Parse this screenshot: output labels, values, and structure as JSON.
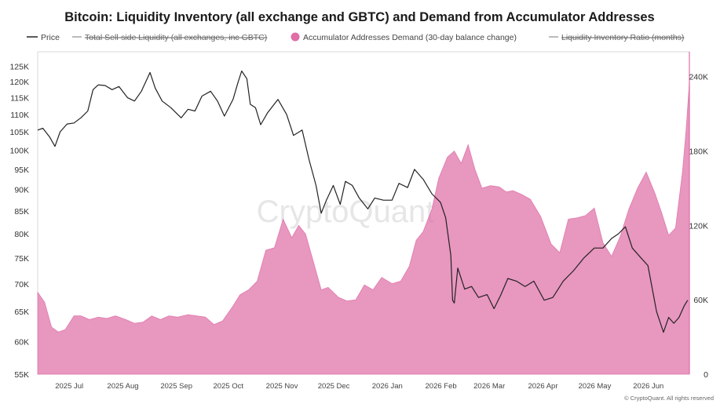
{
  "chart_data": {
    "type": "area",
    "title": "Bitcoin: Liquidity Inventory (all exchange and GBTC) and Demand from Accumulator Addresses",
    "legend": [
      {
        "label": "Price",
        "color": "#222222",
        "style": "line"
      },
      {
        "label": "Total Sell-side Liquidity (all exchanges, inc GBTC)",
        "color": "#666666",
        "style": "line-hidden"
      },
      {
        "label": "Accumulator Addresses Demand (30-day balance change)",
        "color": "#df6fa6",
        "style": "area"
      },
      {
        "label": "Liquidity Inventory Ratio (months)",
        "color": "#666666",
        "style": "line-hidden"
      }
    ],
    "legend_position": "top",
    "x_tick_labels": [
      "2025 Jul",
      "2025 Aug",
      "2025 Sep",
      "2025 Oct",
      "2025 Nov",
      "2025 Dec",
      "2026 Jan",
      "2026 Feb",
      "2026 Mar",
      "2026 Apr",
      "2026 May",
      "2026 Jun"
    ],
    "x_range": [
      "2025-06-10",
      "2026-06-22"
    ],
    "y_left": {
      "scale": "log",
      "range": [
        55000,
        130000
      ],
      "tick_values": [
        55000,
        60000,
        65000,
        70000,
        75000,
        80000,
        85000,
        90000,
        95000,
        100000,
        105000,
        110000,
        115000,
        120000,
        125000
      ],
      "tick_labels": [
        "55K",
        "60K",
        "65K",
        "70K",
        "75K",
        "80K",
        "85K",
        "90K",
        "95K",
        "100K",
        "105K",
        "110K",
        "115K",
        "120K",
        "125K"
      ]
    },
    "y_right": {
      "scale": "linear",
      "range": [
        0,
        260000
      ],
      "tick_values": [
        0,
        60000,
        120000,
        180000,
        240000
      ],
      "tick_labels": [
        "0",
        "60K",
        "120K",
        "180K",
        "240K"
      ]
    },
    "grid": false,
    "series": [
      {
        "name": "Price",
        "axis": "left",
        "type": "line",
        "color": "#222222",
        "x": [
          "2025-06-10",
          "2025-06-13",
          "2025-06-17",
          "2025-06-20",
          "2025-06-23",
          "2025-06-27",
          "2025-07-01",
          "2025-07-05",
          "2025-07-09",
          "2025-07-12",
          "2025-07-15",
          "2025-07-19",
          "2025-07-23",
          "2025-07-27",
          "2025-08-01",
          "2025-08-05",
          "2025-08-09",
          "2025-08-14",
          "2025-08-17",
          "2025-08-21",
          "2025-08-26",
          "2025-09-01",
          "2025-09-05",
          "2025-09-09",
          "2025-09-13",
          "2025-09-18",
          "2025-09-22",
          "2025-09-26",
          "2025-10-01",
          "2025-10-04",
          "2025-10-06",
          "2025-10-09",
          "2025-10-11",
          "2025-10-14",
          "2025-10-17",
          "2025-10-21",
          "2025-10-27",
          "2025-11-01",
          "2025-11-05",
          "2025-11-10",
          "2025-11-14",
          "2025-11-18",
          "2025-11-21",
          "2025-11-24",
          "2025-11-28",
          "2025-12-02",
          "2025-12-05",
          "2025-12-09",
          "2025-12-13",
          "2025-12-18",
          "2025-12-22",
          "2025-12-27",
          "2026-01-01",
          "2026-01-05",
          "2026-01-10",
          "2026-01-14",
          "2026-01-19",
          "2026-01-24",
          "2026-01-29",
          "2026-02-01",
          "2026-02-04",
          "2026-02-05",
          "2026-02-06",
          "2026-02-08",
          "2026-02-12",
          "2026-02-16",
          "2026-02-20",
          "2026-02-25",
          "2026-03-01",
          "2026-03-05",
          "2026-03-09",
          "2026-03-14",
          "2026-03-19",
          "2026-03-24",
          "2026-03-30",
          "2026-04-04",
          "2026-04-10",
          "2026-04-16",
          "2026-04-22",
          "2026-04-28",
          "2026-05-03",
          "2026-05-08",
          "2026-05-12",
          "2026-05-16",
          "2026-05-20",
          "2026-05-25",
          "2026-05-29",
          "2026-06-03",
          "2026-06-07",
          "2026-06-10",
          "2026-06-13",
          "2026-06-16",
          "2026-06-19",
          "2026-06-21"
        ],
        "values": [
          105500,
          106000,
          103500,
          101000,
          105000,
          107200,
          107500,
          109000,
          111000,
          117500,
          119000,
          118800,
          117500,
          118500,
          115000,
          114000,
          117000,
          123000,
          118000,
          114000,
          112000,
          109000,
          111500,
          111000,
          115500,
          117000,
          114000,
          109500,
          114500,
          120000,
          123500,
          121000,
          113000,
          112000,
          107000,
          110500,
          114500,
          110000,
          104000,
          105500,
          97500,
          91000,
          84500,
          87500,
          91000,
          86500,
          92000,
          91000,
          88000,
          85500,
          88000,
          87500,
          87500,
          91500,
          90500,
          95000,
          92500,
          89000,
          87000,
          83500,
          75500,
          67000,
          66500,
          73000,
          69000,
          69500,
          67500,
          68000,
          65500,
          68000,
          71000,
          70500,
          69500,
          70500,
          67000,
          67500,
          70500,
          72500,
          75000,
          77000,
          77000,
          79000,
          80000,
          81500,
          77000,
          75000,
          73500,
          65000,
          61500,
          64000,
          63000,
          64000,
          66000,
          67000
        ]
      },
      {
        "name": "Accumulator Addresses Demand (30-day balance change)",
        "axis": "right",
        "type": "area",
        "color": "#df6fa6",
        "x": [
          "2025-06-10",
          "2025-06-14",
          "2025-06-18",
          "2025-06-22",
          "2025-06-26",
          "2025-07-01",
          "2025-07-05",
          "2025-07-10",
          "2025-07-15",
          "2025-07-20",
          "2025-07-25",
          "2025-07-31",
          "2025-08-05",
          "2025-08-10",
          "2025-08-15",
          "2025-08-20",
          "2025-08-25",
          "2025-08-30",
          "2025-09-05",
          "2025-09-10",
          "2025-09-15",
          "2025-09-20",
          "2025-09-25",
          "2025-10-01",
          "2025-10-05",
          "2025-10-10",
          "2025-10-15",
          "2025-10-20",
          "2025-10-25",
          "2025-10-30",
          "2025-11-04",
          "2025-11-08",
          "2025-11-12",
          "2025-11-17",
          "2025-11-21",
          "2025-11-25",
          "2025-12-01",
          "2025-12-06",
          "2025-12-11",
          "2025-12-16",
          "2025-12-21",
          "2025-12-26",
          "2026-01-01",
          "2026-01-06",
          "2026-01-11",
          "2026-01-15",
          "2026-01-19",
          "2026-01-24",
          "2026-01-28",
          "2026-02-02",
          "2026-02-06",
          "2026-02-10",
          "2026-02-14",
          "2026-02-18",
          "2026-02-22",
          "2026-02-27",
          "2026-03-04",
          "2026-03-08",
          "2026-03-12",
          "2026-03-17",
          "2026-03-22",
          "2026-03-28",
          "2026-04-03",
          "2026-04-08",
          "2026-04-13",
          "2026-04-18",
          "2026-04-23",
          "2026-04-28",
          "2026-05-03",
          "2026-05-08",
          "2026-05-13",
          "2026-05-18",
          "2026-05-23",
          "2026-05-28",
          "2026-06-02",
          "2026-06-06",
          "2026-06-10",
          "2026-06-14",
          "2026-06-18",
          "2026-06-20",
          "2026-06-22"
        ],
        "values": [
          66000,
          58000,
          38000,
          34000,
          36000,
          47000,
          47000,
          44000,
          46000,
          45000,
          47000,
          44000,
          41000,
          42000,
          47000,
          44000,
          47000,
          46000,
          48000,
          47000,
          46000,
          40000,
          43000,
          55000,
          64000,
          68000,
          75000,
          100000,
          102000,
          125000,
          110000,
          120000,
          113000,
          88000,
          68000,
          70000,
          62000,
          59000,
          60000,
          72000,
          68000,
          78000,
          73000,
          75000,
          87000,
          108000,
          115000,
          133000,
          158000,
          175000,
          180000,
          170000,
          185000,
          165000,
          150000,
          152000,
          151000,
          147000,
          148000,
          145000,
          141000,
          127000,
          105000,
          98000,
          125000,
          126000,
          128000,
          134000,
          106000,
          95000,
          111000,
          133000,
          150000,
          163000,
          146000,
          130000,
          112000,
          118000,
          163000,
          195000,
          235000
        ]
      }
    ]
  },
  "footer": {
    "copyright": "© CryptoQuant. All rights reserved"
  },
  "watermark": "CryptoQuant"
}
